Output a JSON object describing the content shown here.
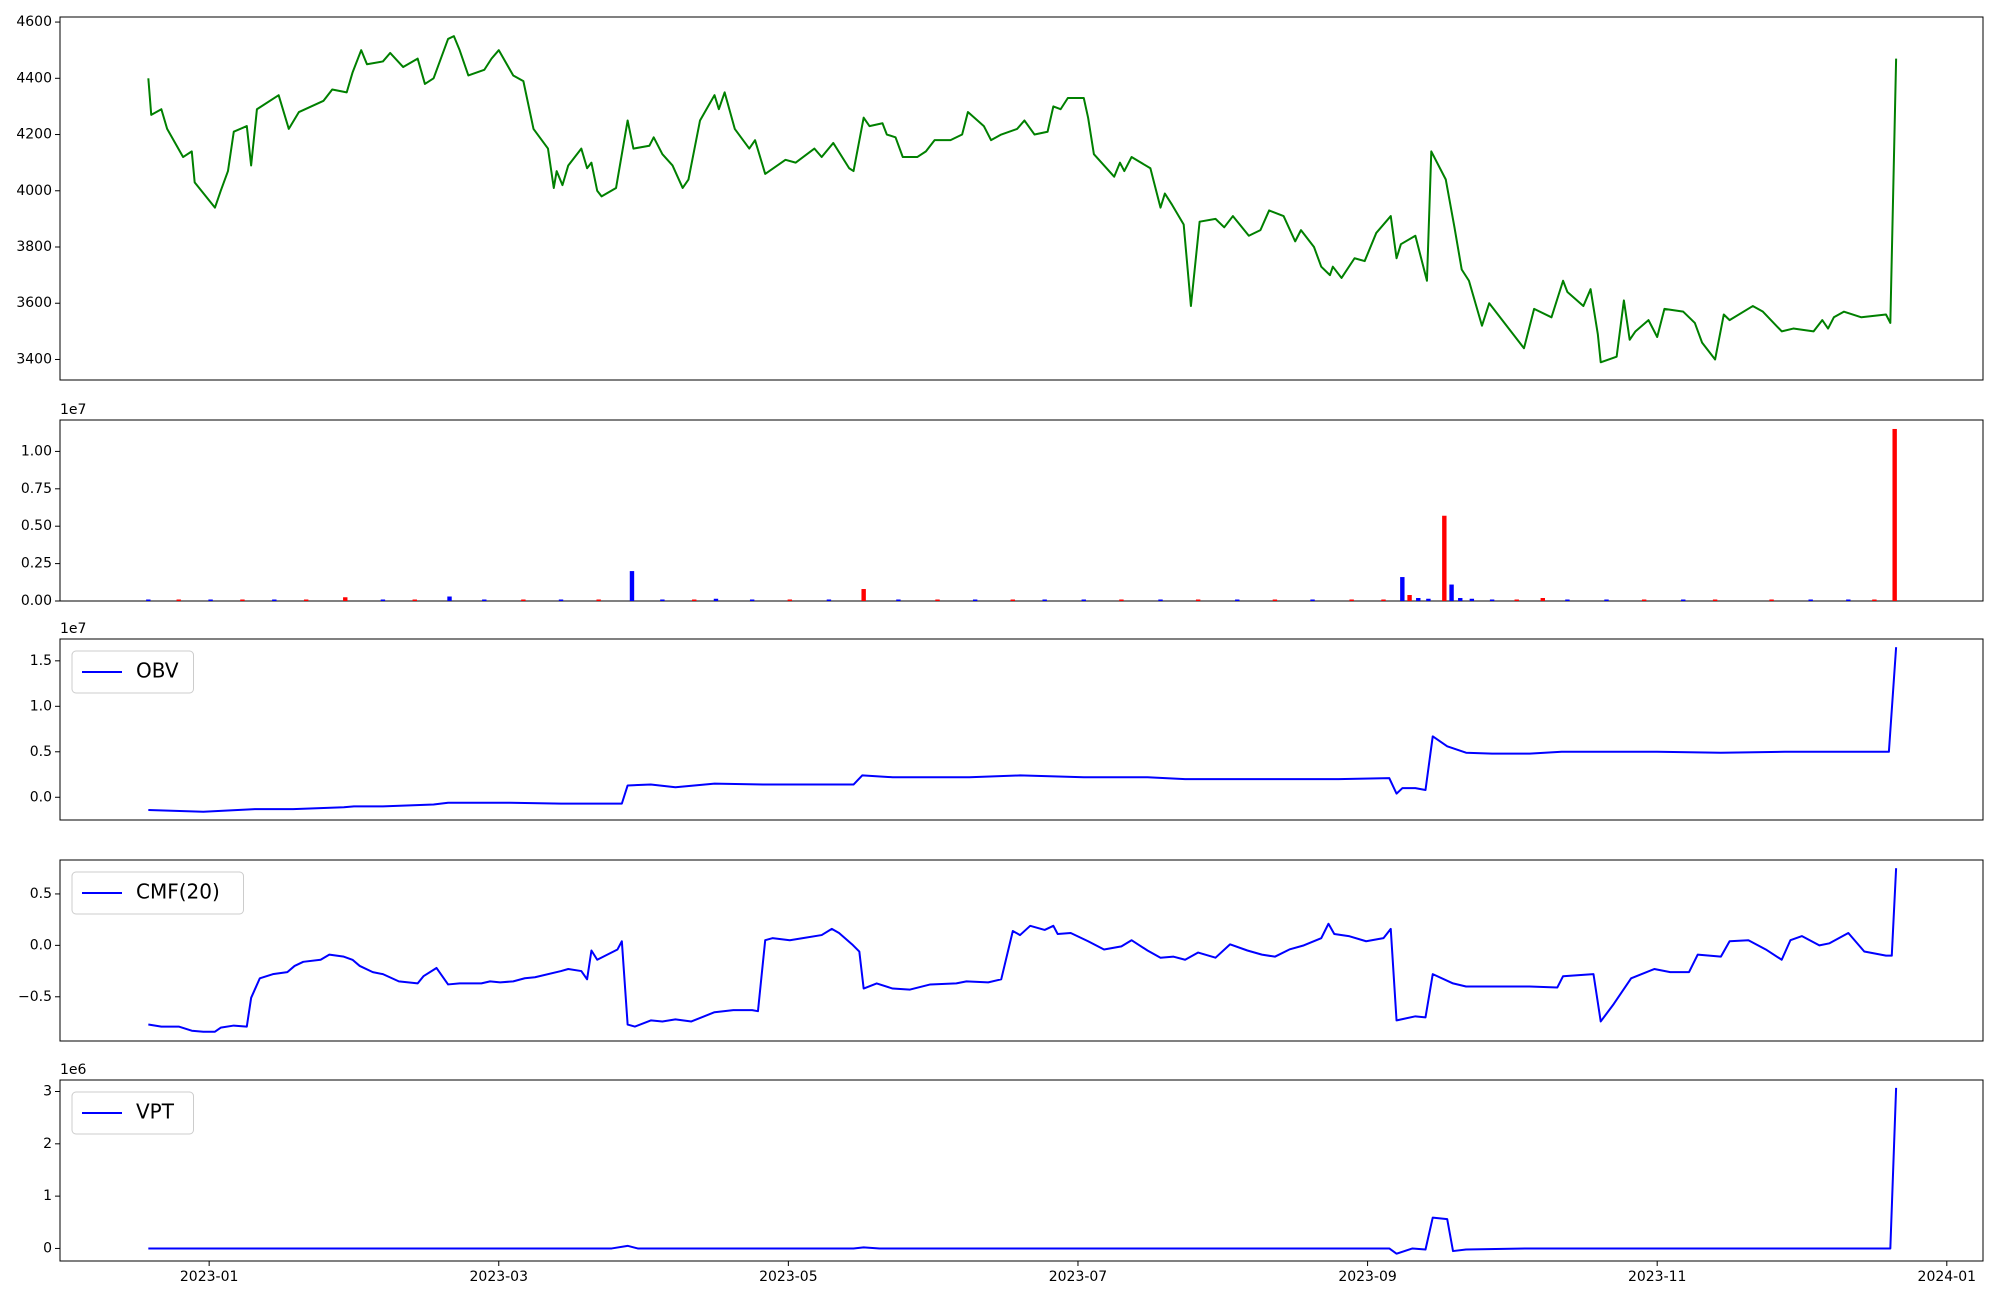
{
  "chart_data": [
    {
      "type": "line",
      "color": "green",
      "xlim": [
        -0.03,
        13.25
      ],
      "ylim": [
        3327,
        4618
      ],
      "yticks": [
        3400,
        3600,
        3800,
        4000,
        4200,
        4400,
        4600
      ],
      "x": [
        0.58,
        0.6,
        0.67,
        0.71,
        0.82,
        0.88,
        0.9,
        1.04,
        1.08,
        1.13,
        1.17,
        1.26,
        1.29,
        1.33,
        1.48,
        1.55,
        1.62,
        1.79,
        1.85,
        1.95,
        1.99,
        2.05,
        2.09,
        2.2,
        2.25,
        2.34,
        2.44,
        2.49,
        2.55,
        2.65,
        2.69,
        2.73,
        2.79,
        2.9,
        2.95,
        3.0,
        3.1,
        3.17,
        3.24,
        3.34,
        3.38,
        3.4,
        3.44,
        3.48,
        3.57,
        3.61,
        3.64,
        3.68,
        3.71,
        3.81,
        3.89,
        3.93,
        4.04,
        4.07,
        4.13,
        4.2,
        4.27,
        4.31,
        4.39,
        4.49,
        4.52,
        4.56,
        4.63,
        4.73,
        4.77,
        4.84,
        4.98,
        5.05,
        5.18,
        5.23,
        5.31,
        5.42,
        5.45,
        5.52,
        5.56,
        5.65,
        5.68,
        5.74,
        5.79,
        5.89,
        5.95,
        6.01,
        6.12,
        6.2,
        6.24,
        6.35,
        6.4,
        6.47,
        6.58,
        6.63,
        6.7,
        6.79,
        6.83,
        6.88,
        6.93,
        7.04,
        7.07,
        7.11,
        7.18,
        7.25,
        7.29,
        7.32,
        7.37,
        7.5,
        7.57,
        7.6,
        7.65,
        7.73,
        7.78,
        7.84,
        7.95,
        8.01,
        8.07,
        8.18,
        8.26,
        8.32,
        8.42,
        8.5,
        8.54,
        8.63,
        8.68,
        8.74,
        8.76,
        8.82,
        8.91,
        8.98,
        9.06,
        9.16,
        9.2,
        9.23,
        9.33,
        9.41,
        9.44,
        9.54,
        9.6,
        9.65,
        9.7,
        9.79,
        9.84,
        10.08,
        10.15,
        10.27,
        10.35,
        10.38,
        10.49,
        10.54,
        10.59,
        10.61,
        10.72,
        10.77,
        10.81,
        10.85,
        10.94,
        11.0,
        11.05,
        11.18,
        11.26,
        11.31,
        11.4,
        11.46,
        11.5,
        11.66,
        11.73,
        11.86,
        11.94,
        12.08,
        12.14,
        12.18,
        12.22,
        12.29,
        12.41,
        12.58,
        12.61,
        12.65
      ],
      "values": [
        4400,
        4270,
        4290,
        4220,
        4120,
        4140,
        4030,
        3940,
        4000,
        4070,
        4210,
        4230,
        4090,
        4290,
        4340,
        4220,
        4280,
        4320,
        4360,
        4350,
        4420,
        4500,
        4450,
        4460,
        4490,
        4440,
        4470,
        4380,
        4400,
        4540,
        4550,
        4500,
        4410,
        4430,
        4470,
        4500,
        4410,
        4390,
        4220,
        4150,
        4010,
        4070,
        4020,
        4090,
        4150,
        4080,
        4100,
        4000,
        3980,
        4010,
        4250,
        4150,
        4160,
        4190,
        4130,
        4090,
        4010,
        4040,
        4250,
        4340,
        4290,
        4350,
        4220,
        4150,
        4180,
        4060,
        4110,
        4100,
        4150,
        4120,
        4170,
        4080,
        4070,
        4260,
        4230,
        4240,
        4200,
        4190,
        4120,
        4120,
        4140,
        4180,
        4180,
        4200,
        4280,
        4230,
        4180,
        4200,
        4220,
        4250,
        4200,
        4210,
        4300,
        4290,
        4330,
        4330,
        4260,
        4130,
        4090,
        4050,
        4100,
        4070,
        4120,
        4080,
        3940,
        3990,
        3950,
        3880,
        3590,
        3890,
        3900,
        3870,
        3910,
        3840,
        3860,
        3930,
        3910,
        3820,
        3860,
        3800,
        3730,
        3700,
        3730,
        3690,
        3760,
        3750,
        3850,
        3910,
        3760,
        3810,
        3840,
        3680,
        4140,
        4040,
        3870,
        3720,
        3680,
        3520,
        3600,
        3440,
        3580,
        3550,
        3680,
        3640,
        3590,
        3650,
        3490,
        3390,
        3410,
        3610,
        3470,
        3500,
        3540,
        3480,
        3580,
        3570,
        3530,
        3460,
        3400,
        3560,
        3540,
        3590,
        3570,
        3500,
        3510,
        3500,
        3540,
        3510,
        3550,
        3570,
        3550,
        3560,
        3530,
        4470
      ]
    },
    {
      "type": "bar",
      "offset_label": "1e7",
      "xlim": [
        -0.03,
        13.25
      ],
      "ylim": [
        0,
        1.21
      ],
      "yticks": [
        {
          "value": 0,
          "label": "0.00"
        },
        {
          "value": 0.25,
          "label": "0.25"
        },
        {
          "value": 0.5,
          "label": "0.50"
        },
        {
          "value": 0.75,
          "label": "0.75"
        },
        {
          "value": 1,
          "label": "1.00"
        }
      ],
      "x": [
        0.58,
        0.79,
        1.01,
        1.23,
        1.45,
        1.67,
        1.94,
        2.2,
        2.42,
        2.66,
        2.9,
        3.17,
        3.43,
        3.69,
        3.92,
        4.13,
        4.35,
        4.5,
        4.75,
        5.01,
        5.28,
        5.52,
        5.76,
        6.03,
        6.29,
        6.55,
        6.77,
        7.04,
        7.3,
        7.57,
        7.83,
        8.1,
        8.36,
        8.62,
        8.89,
        9.11,
        9.24,
        9.29,
        9.35,
        9.42,
        9.53,
        9.58,
        9.64,
        9.72,
        9.86,
        10.03,
        10.21,
        10.38,
        10.65,
        10.91,
        11.18,
        11.4,
        11.79,
        12.06,
        12.32,
        12.5,
        12.64
      ],
      "values": [
        0.01,
        0.01,
        0.01,
        0.01,
        0.01,
        0.01,
        0.025,
        0.01,
        0.01,
        0.03,
        0.01,
        0.01,
        0.01,
        0.01,
        0.2,
        0.01,
        0.01,
        0.015,
        0.01,
        0.01,
        0.01,
        0.08,
        0.01,
        0.01,
        0.01,
        0.01,
        0.01,
        0.01,
        0.01,
        0.01,
        0.01,
        0.01,
        0.01,
        0.01,
        0.01,
        0.01,
        0.16,
        0.04,
        0.02,
        0.015,
        0.57,
        0.11,
        0.02,
        0.015,
        0.01,
        0.01,
        0.02,
        0.01,
        0.01,
        0.01,
        0.01,
        0.01,
        0.01,
        0.01,
        0.01,
        0.01,
        1.15
      ],
      "colors": [
        "blue",
        "red",
        "blue",
        "red",
        "blue",
        "red",
        "red",
        "blue",
        "red",
        "blue",
        "blue",
        "red",
        "blue",
        "red",
        "blue",
        "blue",
        "red",
        "blue",
        "blue",
        "red",
        "blue",
        "red",
        "blue",
        "red",
        "blue",
        "red",
        "blue",
        "blue",
        "red",
        "blue",
        "red",
        "blue",
        "red",
        "blue",
        "red",
        "red",
        "blue",
        "red",
        "blue",
        "blue",
        "red",
        "blue",
        "blue",
        "blue",
        "blue",
        "red",
        "red",
        "blue",
        "blue",
        "red",
        "blue",
        "red",
        "red",
        "blue",
        "blue",
        "red",
        "red"
      ]
    },
    {
      "type": "line",
      "offset_label": "1e7",
      "legend": "upper left",
      "xlim": [
        -0.03,
        13.25
      ],
      "ylim": [
        -0.25,
        1.74
      ],
      "yticks": [
        {
          "value": 0,
          "label": "0.0"
        },
        0.5,
        {
          "value": 1,
          "label": "1.0"
        },
        1.5
      ],
      "x": [
        0.58,
        0.96,
        1.32,
        1.58,
        1.93,
        2.0,
        2.2,
        2.55,
        2.65,
        3.08,
        3.43,
        3.85,
        3.89,
        4.05,
        4.22,
        4.49,
        4.84,
        5.45,
        5.51,
        5.72,
        6.25,
        6.6,
        7.04,
        7.48,
        7.74,
        8.36,
        8.8,
        9.15,
        9.2,
        9.24,
        9.33,
        9.4,
        9.45,
        9.55,
        9.68,
        9.86,
        10.12,
        10.34,
        10.65,
        11.0,
        11.44,
        11.88,
        12.6,
        12.65
      ],
      "series": [
        {
          "name": "OBV",
          "color": "blue",
          "values": [
            -0.14,
            -0.16,
            -0.13,
            -0.13,
            -0.11,
            -0.1,
            -0.1,
            -0.08,
            -0.06,
            -0.06,
            -0.07,
            -0.07,
            0.13,
            0.14,
            0.11,
            0.15,
            0.14,
            0.14,
            0.24,
            0.22,
            0.22,
            0.24,
            0.22,
            0.22,
            0.2,
            0.2,
            0.2,
            0.21,
            0.04,
            0.1,
            0.1,
            0.08,
            0.67,
            0.56,
            0.49,
            0.48,
            0.48,
            0.5,
            0.5,
            0.5,
            0.49,
            0.5,
            0.5,
            1.65
          ]
        }
      ]
    },
    {
      "type": "line",
      "legend": "upper left",
      "xlim": [
        -0.03,
        13.25
      ],
      "ylim": [
        -0.93,
        0.83
      ],
      "yticks": [
        {
          "value": -0.5,
          "label": "−0.5"
        },
        {
          "value": 0,
          "label": "0.0"
        },
        0.5
      ],
      "x": [
        0.58,
        0.67,
        0.79,
        0.88,
        0.96,
        1.04,
        1.08,
        1.17,
        1.26,
        1.29,
        1.35,
        1.44,
        1.54,
        1.59,
        1.65,
        1.77,
        1.83,
        1.93,
        1.99,
        2.04,
        2.13,
        2.2,
        2.31,
        2.44,
        2.48,
        2.57,
        2.65,
        2.73,
        2.88,
        2.94,
        3.01,
        3.1,
        3.18,
        3.25,
        3.43,
        3.48,
        3.57,
        3.61,
        3.64,
        3.68,
        3.82,
        3.85,
        3.89,
        3.94,
        4.05,
        4.13,
        4.22,
        4.33,
        4.49,
        4.62,
        4.75,
        4.79,
        4.84,
        4.89,
        5.01,
        5.1,
        5.23,
        5.3,
        5.35,
        5.44,
        5.49,
        5.52,
        5.61,
        5.72,
        5.84,
        5.98,
        6.16,
        6.23,
        6.38,
        6.47,
        6.55,
        6.6,
        6.67,
        6.77,
        6.83,
        6.86,
        6.95,
        7.07,
        7.18,
        7.3,
        7.37,
        7.48,
        7.57,
        7.66,
        7.74,
        7.83,
        7.95,
        8.05,
        8.17,
        8.27,
        8.36,
        8.46,
        8.56,
        8.68,
        8.73,
        8.77,
        8.87,
        8.99,
        9.11,
        9.16,
        9.2,
        9.33,
        9.4,
        9.45,
        9.59,
        9.68,
        10.12,
        10.31,
        10.35,
        10.56,
        10.61,
        10.7,
        10.82,
        10.98,
        11.09,
        11.22,
        11.28,
        11.44,
        11.5,
        11.63,
        11.75,
        11.86,
        11.92,
        12.0,
        12.12,
        12.19,
        12.32,
        12.43,
        12.58,
        12.62,
        12.65
      ],
      "series": [
        {
          "name": "CMF(20)",
          "color": "blue",
          "values": [
            -0.77,
            -0.79,
            -0.79,
            -0.83,
            -0.84,
            -0.84,
            -0.8,
            -0.78,
            -0.79,
            -0.51,
            -0.32,
            -0.28,
            -0.26,
            -0.2,
            -0.16,
            -0.14,
            -0.09,
            -0.11,
            -0.14,
            -0.2,
            -0.26,
            -0.28,
            -0.35,
            -0.37,
            -0.3,
            -0.22,
            -0.38,
            -0.37,
            -0.37,
            -0.35,
            -0.36,
            -0.35,
            -0.32,
            -0.31,
            -0.25,
            -0.23,
            -0.25,
            -0.33,
            -0.05,
            -0.14,
            -0.04,
            0.04,
            -0.77,
            -0.79,
            -0.73,
            -0.74,
            -0.72,
            -0.74,
            -0.65,
            -0.63,
            -0.63,
            -0.64,
            0.05,
            0.07,
            0.05,
            0.07,
            0.1,
            0.16,
            0.12,
            0.01,
            -0.06,
            -0.42,
            -0.37,
            -0.42,
            -0.43,
            -0.38,
            -0.37,
            -0.35,
            -0.36,
            -0.33,
            0.14,
            0.1,
            0.19,
            0.15,
            0.19,
            0.11,
            0.12,
            0.04,
            -0.04,
            -0.01,
            0.05,
            -0.05,
            -0.12,
            -0.11,
            -0.14,
            -0.07,
            -0.12,
            0.01,
            -0.05,
            -0.09,
            -0.11,
            -0.04,
            0.0,
            0.07,
            0.21,
            0.11,
            0.09,
            0.04,
            0.07,
            0.16,
            -0.73,
            -0.69,
            -0.7,
            -0.28,
            -0.37,
            -0.4,
            -0.4,
            -0.41,
            -0.3,
            -0.28,
            -0.74,
            -0.57,
            -0.32,
            -0.23,
            -0.26,
            -0.26,
            -0.09,
            -0.11,
            0.04,
            0.05,
            -0.04,
            -0.14,
            0.05,
            0.09,
            0.0,
            0.02,
            0.12,
            -0.06,
            -0.1,
            -0.1,
            0.75
          ]
        }
      ]
    },
    {
      "type": "line",
      "offset_label": "1e6",
      "legend": "upper left",
      "xlim": [
        -0.03,
        13.25
      ],
      "ylim": [
        -0.24,
        3.22
      ],
      "yticks": [
        0,
        1,
        2,
        3
      ],
      "xticks": [
        {
          "value": 1,
          "label": "2023-01"
        },
        {
          "value": 3,
          "label": "2023-03"
        },
        {
          "value": 5,
          "label": "2023-05"
        },
        {
          "value": 7,
          "label": "2023-07"
        },
        {
          "value": 9,
          "label": "2023-09"
        },
        {
          "value": 11,
          "label": "2023-11"
        },
        {
          "value": 13,
          "label": "2024-01"
        }
      ],
      "x": [
        0.58,
        3.78,
        3.89,
        3.96,
        5.45,
        5.52,
        5.63,
        9.15,
        9.2,
        9.31,
        9.4,
        9.45,
        9.55,
        9.59,
        9.68,
        10.12,
        12.61,
        12.65
      ],
      "series": [
        {
          "name": "VPT",
          "color": "blue",
          "values": [
            0,
            0,
            0.05,
            0,
            0,
            0.02,
            0,
            0,
            -0.1,
            0,
            -0.02,
            0.59,
            0.56,
            -0.05,
            -0.02,
            0,
            0,
            3.07
          ]
        }
      ]
    }
  ]
}
